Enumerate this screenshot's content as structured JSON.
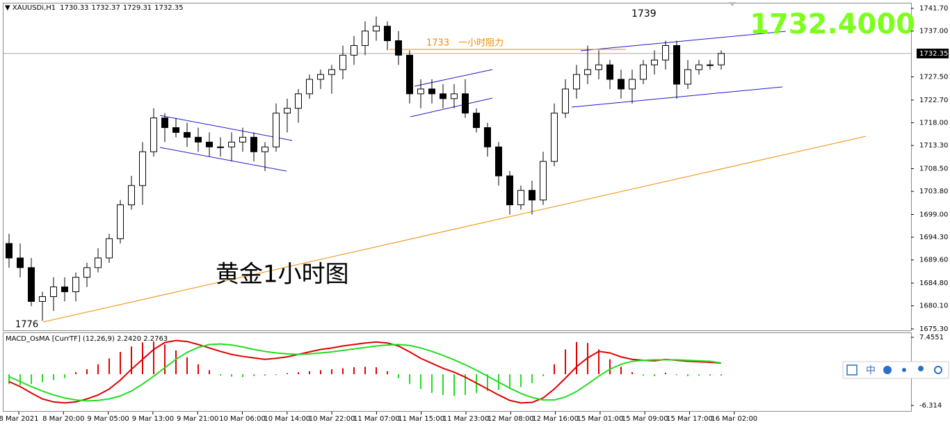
{
  "chart_data": {
    "type": "candlestick",
    "title": "XAUUSDi,H1",
    "header_ohlc": [
      1730.33,
      1732.37,
      1729.31,
      1732.35
    ],
    "open": [
      1693,
      1690,
      1688,
      1681,
      1682,
      1684,
      1683,
      1686,
      1688,
      1690,
      1694,
      1701,
      1705,
      1712,
      1719,
      1717,
      1716,
      1715,
      1714,
      1713,
      1713,
      1714,
      1715,
      1712,
      1713,
      1720,
      1721,
      1724,
      1727,
      1728,
      1729,
      1732,
      1734,
      1737,
      1738,
      1735,
      1732,
      1724,
      1725,
      1724,
      1723,
      1724,
      1720,
      1717,
      1713,
      1707,
      1701,
      1704,
      1702,
      1710,
      1720,
      1725,
      1728,
      1729,
      1730,
      1727,
      1725,
      1727,
      1730,
      1731,
      1734,
      1726,
      1729,
      1730,
      1730
    ],
    "high": [
      1695,
      1693,
      1690,
      1683,
      1686,
      1686,
      1687,
      1689,
      1692,
      1695,
      1702,
      1707,
      1714,
      1721,
      1720,
      1719,
      1718,
      1717,
      1716,
      1715,
      1716,
      1717,
      1716,
      1714,
      1722,
      1723,
      1725,
      1728,
      1729,
      1730,
      1734,
      1736,
      1739,
      1740,
      1739,
      1737,
      1733,
      1727,
      1727,
      1726,
      1726,
      1727,
      1721,
      1718,
      1714,
      1708,
      1705,
      1706,
      1712,
      1722,
      1727,
      1730,
      1734,
      1733,
      1731,
      1729,
      1729,
      1731,
      1733,
      1735,
      1735,
      1731,
      1731,
      1731,
      1733
    ],
    "low": [
      1688,
      1686,
      1680,
      1677,
      1679,
      1681,
      1681,
      1684,
      1687,
      1689,
      1693,
      1700,
      1701,
      1711,
      1714,
      1715,
      1713,
      1712,
      1711,
      1711,
      1710,
      1712,
      1710,
      1708,
      1712,
      1716,
      1718,
      1723,
      1725,
      1724,
      1727,
      1730,
      1732,
      1735,
      1733,
      1730,
      1722,
      1721,
      1722,
      1721,
      1721,
      1719,
      1716,
      1711,
      1705,
      1699,
      1700,
      1699,
      1701,
      1709,
      1719,
      1723,
      1726,
      1727,
      1725,
      1723,
      1722,
      1726,
      1728,
      1729,
      1723,
      1725,
      1728,
      1729,
      1729
    ],
    "close": [
      1690,
      1688,
      1681,
      1682,
      1684,
      1683,
      1686,
      1688,
      1690,
      1694,
      1701,
      1705,
      1712,
      1719,
      1717,
      1716,
      1715,
      1714,
      1713,
      1713,
      1714,
      1715,
      1712,
      1713,
      1720,
      1721,
      1724,
      1727,
      1728,
      1729,
      1732,
      1734,
      1737,
      1738,
      1735,
      1732,
      1724,
      1725,
      1724,
      1723,
      1724,
      1720,
      1717,
      1713,
      1707,
      1701,
      1704,
      1702,
      1710,
      1720,
      1725,
      1728,
      1729,
      1730,
      1727,
      1725,
      1727,
      1730,
      1731,
      1734,
      1726,
      1729,
      1730,
      1730,
      1732.35
    ],
    "ylim": [
      1675.3,
      1741.7
    ],
    "yticks": [
      {
        "value": 1741.7,
        "label": "1741.70"
      },
      {
        "value": 1737.0,
        "label": "1737.00"
      },
      {
        "value": 1727.5,
        "label": "1727.50"
      },
      {
        "value": 1722.7,
        "label": "1722.70"
      },
      {
        "value": 1718.0,
        "label": "1718.00"
      },
      {
        "value": 1713.3,
        "label": "1713.30"
      },
      {
        "value": 1708.5,
        "label": "1708.50"
      },
      {
        "value": 1703.8,
        "label": "1703.80"
      },
      {
        "value": 1699.0,
        "label": "1699.00"
      },
      {
        "value": 1694.3,
        "label": "1694.30"
      },
      {
        "value": 1689.6,
        "label": "1689.60"
      },
      {
        "value": 1684.8,
        "label": "1684.80"
      },
      {
        "value": 1680.1,
        "label": "1680.10"
      },
      {
        "value": 1675.3,
        "label": "1675.30"
      }
    ],
    "xticks": [
      "8 Mar 2021",
      "8 Mar 20:00",
      "9 Mar 05:00",
      "9 Mar 13:00",
      "9 Mar 21:00",
      "10 Mar 06:00",
      "10 Mar 14:00",
      "10 Mar 22:00",
      "11 Mar 07:00",
      "11 Mar 15:00",
      "11 Mar 23:00",
      "12 Mar 08:00",
      "12 Mar 16:00",
      "15 Mar 01:00",
      "15 Mar 09:00",
      "15 Mar 17:00",
      "16 Mar 02:00"
    ],
    "annotations": [
      "1739",
      "1733　一小时阻力",
      "1776",
      "黄金1小时图",
      "1732.4000"
    ],
    "indicator": {
      "title": "MACD_OsMA [CurrTF] (12,26,9) 2.2420 2.2763",
      "ylim": [
        -6.314,
        7.4551
      ],
      "yticks": [
        -6.314,
        7.4551
      ],
      "histogram": [
        -2,
        -2.2,
        -2,
        -1.6,
        -1.2,
        -0.8,
        0.4,
        1,
        2,
        3.2,
        4.5,
        5.6,
        6.4,
        6.6,
        6,
        4.8,
        3.4,
        2,
        0.8,
        -0.3,
        -0.5,
        -0.6,
        -0.4,
        -0.3,
        -0.2,
        0.2,
        0.4,
        0.6,
        0.8,
        1,
        1.2,
        1.4,
        1.5,
        1.4,
        0.6,
        -0.8,
        -2,
        -3,
        -3.8,
        -4.2,
        -4.4,
        -4.2,
        -3.8,
        -3.4,
        -3.2,
        -3,
        -2.6,
        -1.8,
        -0.4,
        2,
        5,
        6.5,
        6.3,
        5,
        3,
        1.5,
        0.4,
        -0.3,
        -0.4,
        0.3,
        -0.2,
        -0.4,
        -0.3,
        -0.3,
        -0.3
      ],
      "macd": [
        -1.5,
        -2.5,
        -3.8,
        -5,
        -5.6,
        -5.8,
        -5.6,
        -5,
        -4.2,
        -3,
        -1.2,
        1,
        3,
        5,
        6.4,
        6.8,
        6.6,
        6,
        5.3,
        4.6,
        4,
        3.6,
        3.3,
        3,
        3.2,
        3.5,
        4,
        4.5,
        5,
        5.3,
        5.7,
        6,
        6.3,
        6.5,
        6.3,
        5.7,
        4.5,
        3.2,
        2.2,
        1.2,
        0.4,
        -0.6,
        -1.8,
        -3,
        -4.2,
        -5.3,
        -5.8,
        -5.7,
        -4.8,
        -3,
        -0.8,
        1.5,
        3.3,
        4.6,
        4.3,
        3.5,
        3,
        2.8,
        2.7,
        3,
        2.8,
        2.6,
        2.5,
        2.4,
        2.242
      ],
      "signal": [
        -0.5,
        -1.5,
        -2.5,
        -3.4,
        -4.2,
        -4.8,
        -5.2,
        -5.4,
        -5.3,
        -5,
        -4.4,
        -3.4,
        -2,
        -0.4,
        1.3,
        3,
        4.4,
        5.4,
        6,
        6.1,
        5.9,
        5.5,
        5,
        4.6,
        4.3,
        4.1,
        4,
        4.1,
        4.3,
        4.5,
        4.8,
        5.1,
        5.4,
        5.7,
        5.9,
        6,
        5.8,
        5.3,
        4.6,
        3.8,
        2.9,
        1.9,
        0.8,
        -0.4,
        -1.6,
        -2.8,
        -3.9,
        -4.7,
        -5.2,
        -5.2,
        -4.6,
        -3.5,
        -2,
        -0.4,
        1,
        2,
        2.6,
        2.8,
        2.9,
        2.9,
        2.9,
        2.8,
        2.7,
        2.6,
        2.2763
      ],
      "macd_color": "#e00000",
      "signal_color": "#22dd22",
      "up_color": "#e00000",
      "down_color": "#22dd22"
    },
    "toolbar_label": "中"
  }
}
